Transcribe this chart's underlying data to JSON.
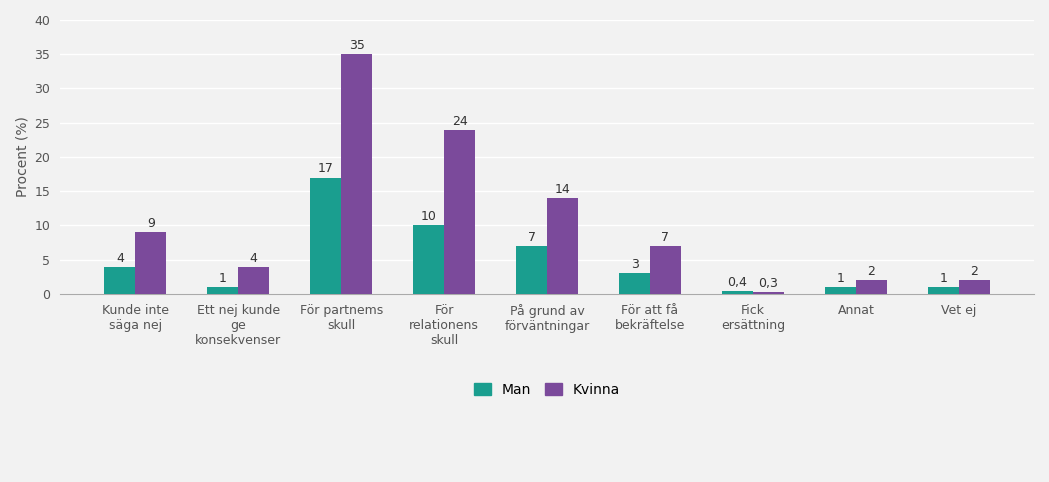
{
  "categories": [
    "Kunde inte\nsäga nej",
    "Ett nej kunde\nge\nkonsekvenser",
    "För partnems\nskull",
    "För\nrelationens\nskull",
    "På grund av\nförväntningar",
    "För att få\nbekräftelse",
    "Fick\nersättning",
    "Annat",
    "Vet ej"
  ],
  "man_values": [
    4,
    1,
    17,
    10,
    7,
    3,
    0.4,
    1,
    1
  ],
  "kvinna_values": [
    9,
    4,
    35,
    24,
    14,
    7,
    0.3,
    2,
    2
  ],
  "man_labels": [
    "4",
    "1",
    "17",
    "10",
    "7",
    "3",
    "0,4",
    "1",
    "1"
  ],
  "kvinna_labels": [
    "9",
    "4",
    "35",
    "24",
    "14",
    "7",
    "0,3",
    "2",
    "2"
  ],
  "man_color": "#1A9E8F",
  "kvinna_color": "#7B4A9B",
  "ylabel": "Procent (%)",
  "ylim": [
    0,
    40
  ],
  "yticks": [
    0,
    5,
    10,
    15,
    20,
    25,
    30,
    35,
    40
  ],
  "legend_man": "Man",
  "legend_kvinna": "Kvinna",
  "bar_width": 0.3,
  "background_color": "#f2f2f2",
  "plot_bg_color": "#f2f2f2",
  "grid_color": "#ffffff",
  "label_fontsize": 9,
  "tick_fontsize": 9,
  "ylabel_fontsize": 10
}
